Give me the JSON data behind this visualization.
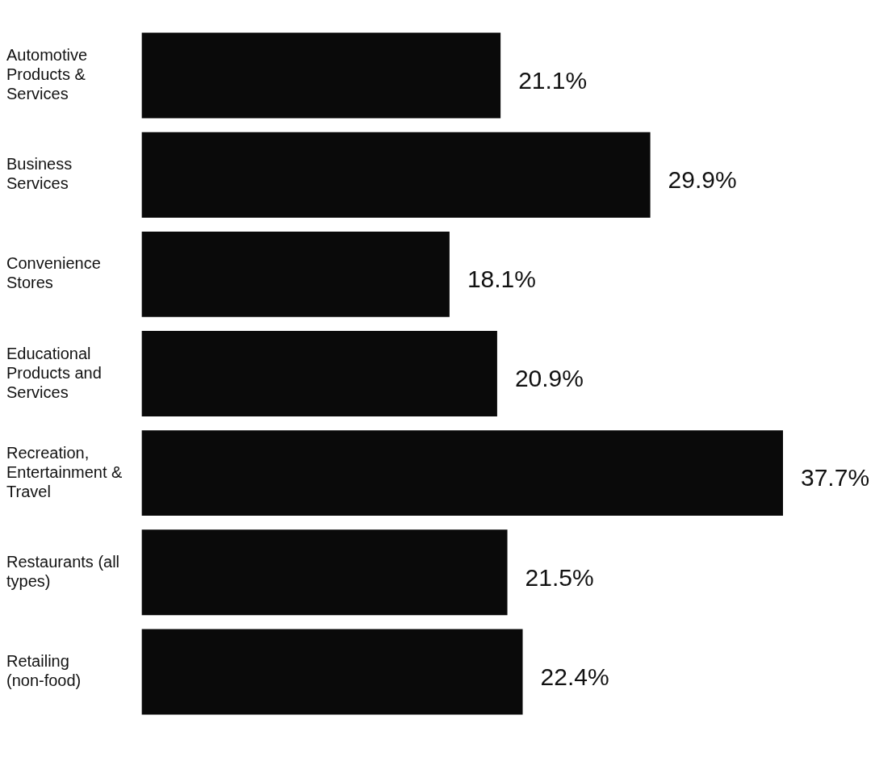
{
  "chart_data": {
    "type": "bar",
    "orientation": "horizontal",
    "categories": [
      "Automotive Products & Services",
      "Business Services",
      "Convenience Stores",
      "Educational Products and Services",
      "Recreation, Entertainment & Travel",
      "Restaurants (all types)",
      "Retailing (non-food)"
    ],
    "values": [
      21.1,
      29.9,
      18.1,
      20.9,
      37.7,
      21.5,
      22.4
    ],
    "value_labels": [
      "21.1%",
      "29.9%",
      "18.1%",
      "20.9%",
      "37.7%",
      "21.5%",
      "22.4%"
    ],
    "color": "#0a0a0a"
  }
}
